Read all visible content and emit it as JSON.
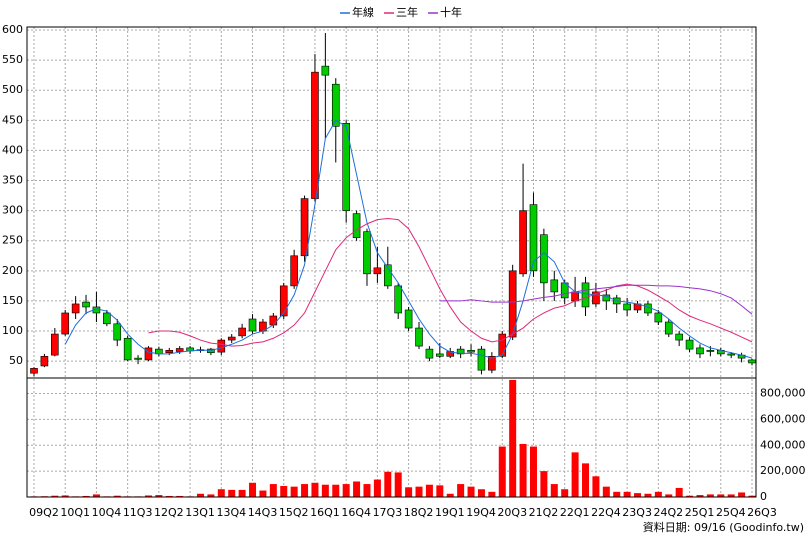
{
  "chart_data": [
    {
      "type": "candlestick",
      "categories": [
        "09Q2",
        null,
        null,
        "10Q1",
        null,
        null,
        "10Q4",
        null,
        null,
        "11Q3",
        null,
        null,
        "12Q2",
        null,
        null,
        "13Q1",
        null,
        null,
        "13Q4",
        null,
        null,
        "14Q3",
        null,
        null,
        "15Q2",
        null,
        null,
        "16Q1",
        null,
        null,
        "16Q4",
        null,
        null,
        "17Q3",
        null,
        null,
        "18Q2",
        null,
        null,
        "19Q1",
        null,
        null,
        "19Q4",
        null,
        null,
        "20Q3",
        null,
        null,
        "21Q2",
        null,
        null,
        "22Q1",
        null,
        null,
        "22Q4",
        null,
        null,
        "23Q3",
        null,
        null,
        "24Q2",
        null,
        null,
        "25Q1",
        null,
        null,
        "25Q4",
        null,
        null,
        "26Q3"
      ],
      "open": [
        30,
        42,
        60,
        95,
        130,
        148,
        140,
        130,
        112,
        88,
        55,
        52,
        70,
        64,
        66,
        72,
        68,
        70,
        65,
        85,
        92,
        120,
        100,
        110,
        125,
        175,
        225,
        320,
        540,
        510,
        445,
        295,
        265,
        195,
        210,
        175,
        135,
        105,
        70,
        62,
        58,
        70,
        68,
        70,
        35,
        58,
        90,
        195,
        310,
        260,
        185,
        180,
        150,
        180,
        145,
        160,
        155,
        145,
        135,
        145,
        130,
        115,
        95,
        85,
        72,
        68,
        68,
        62,
        60,
        52
      ],
      "high": [
        40,
        62,
        105,
        135,
        158,
        160,
        165,
        135,
        120,
        92,
        60,
        75,
        74,
        72,
        75,
        75,
        74,
        72,
        88,
        95,
        112,
        128,
        120,
        130,
        180,
        235,
        325,
        560,
        595,
        520,
        450,
        300,
        270,
        240,
        240,
        180,
        140,
        115,
        75,
        80,
        72,
        75,
        78,
        75,
        65,
        100,
        210,
        378,
        330,
        270,
        200,
        185,
        190,
        190,
        180,
        170,
        160,
        155,
        150,
        150,
        135,
        120,
        100,
        90,
        78,
        75,
        72,
        65,
        64,
        54
      ],
      "low": [
        25,
        40,
        58,
        92,
        120,
        128,
        115,
        108,
        75,
        50,
        45,
        50,
        58,
        60,
        62,
        62,
        64,
        60,
        60,
        80,
        88,
        95,
        95,
        105,
        120,
        170,
        215,
        315,
        420,
        380,
        280,
        250,
        175,
        180,
        170,
        120,
        100,
        70,
        50,
        55,
        55,
        55,
        58,
        28,
        30,
        55,
        85,
        190,
        190,
        150,
        150,
        145,
        140,
        125,
        140,
        135,
        130,
        125,
        130,
        125,
        110,
        90,
        75,
        65,
        55,
        58,
        58,
        55,
        48,
        43
      ],
      "close": [
        38,
        58,
        95,
        130,
        145,
        140,
        130,
        112,
        85,
        52,
        53,
        72,
        62,
        68,
        71,
        67,
        69,
        64,
        85,
        90,
        105,
        100,
        115,
        125,
        175,
        225,
        320,
        530,
        525,
        440,
        300,
        255,
        195,
        205,
        175,
        130,
        105,
        75,
        55,
        58,
        66,
        62,
        65,
        35,
        58,
        95,
        200,
        300,
        200,
        180,
        165,
        155,
        165,
        140,
        165,
        150,
        145,
        135,
        145,
        130,
        115,
        95,
        85,
        70,
        62,
        66,
        62,
        60,
        55,
        47
      ],
      "up_color": "#ff0000",
      "down_color": "#00cc00",
      "series": [
        {
          "name": "年線",
          "color": "#1e6fd9",
          "values": [
            null,
            null,
            null,
            78,
            110,
            130,
            137,
            133,
            118,
            95,
            78,
            65,
            62,
            62,
            65,
            67,
            68,
            68,
            72,
            78,
            85,
            95,
            100,
            110,
            130,
            160,
            210,
            310,
            420,
            450,
            440,
            360,
            280,
            230,
            205,
            180,
            150,
            120,
            95,
            75,
            65,
            63,
            63,
            60,
            55,
            60,
            95,
            150,
            215,
            230,
            215,
            180,
            165,
            162,
            160,
            158,
            150,
            148,
            145,
            140,
            133,
            120,
            105,
            92,
            80,
            72,
            68,
            64,
            60,
            55
          ]
        },
        {
          "name": "三年",
          "color": "#e0287a",
          "values": [
            null,
            null,
            null,
            null,
            null,
            null,
            null,
            null,
            null,
            null,
            null,
            97,
            100,
            100,
            98,
            92,
            85,
            80,
            78,
            75,
            76,
            80,
            82,
            88,
            97,
            110,
            130,
            165,
            200,
            235,
            255,
            268,
            278,
            285,
            287,
            285,
            270,
            240,
            205,
            170,
            140,
            115,
            100,
            88,
            82,
            85,
            95,
            105,
            120,
            130,
            138,
            142,
            150,
            155,
            162,
            168,
            175,
            178,
            175,
            168,
            158,
            148,
            135,
            125,
            118,
            112,
            105,
            98,
            90,
            82
          ]
        },
        {
          "name": "十年",
          "color": "#9933cc",
          "values": [
            null,
            null,
            null,
            null,
            null,
            null,
            null,
            null,
            null,
            null,
            null,
            null,
            null,
            null,
            null,
            null,
            null,
            null,
            null,
            null,
            null,
            null,
            null,
            null,
            null,
            null,
            null,
            null,
            null,
            null,
            null,
            null,
            null,
            null,
            null,
            null,
            null,
            null,
            null,
            150,
            150,
            150,
            152,
            150,
            148,
            148,
            148,
            150,
            153,
            156,
            158,
            162,
            165,
            168,
            170,
            172,
            174,
            176,
            176,
            176,
            175,
            175,
            174,
            172,
            170,
            167,
            162,
            155,
            142,
            128
          ]
        }
      ],
      "ylim": [
        22,
        605
      ],
      "yticks": [
        50,
        100,
        150,
        200,
        250,
        300,
        350,
        400,
        450,
        500,
        550,
        600
      ],
      "grid": true
    },
    {
      "type": "bar",
      "color": "#ff0000",
      "values": [
        5000,
        6000,
        10000,
        12000,
        5000,
        8000,
        20000,
        5000,
        10000,
        5000,
        5000,
        12000,
        15000,
        8000,
        8000,
        5000,
        25000,
        20000,
        60000,
        55000,
        55000,
        110000,
        50000,
        100000,
        85000,
        80000,
        100000,
        110000,
        95000,
        95000,
        100000,
        120000,
        100000,
        135000,
        195000,
        190000,
        75000,
        80000,
        95000,
        90000,
        25000,
        100000,
        80000,
        60000,
        40000,
        390000,
        905000,
        410000,
        390000,
        200000,
        100000,
        60000,
        345000,
        260000,
        160000,
        80000,
        40000,
        40000,
        30000,
        25000,
        40000,
        20000,
        70000,
        10000,
        15000,
        20000,
        20000,
        20000,
        35000,
        10000
      ],
      "ylim": [
        0,
        920000
      ],
      "yticks": [
        0,
        {
          "value": 200000,
          "label": "200,000"
        },
        {
          "value": 400000,
          "label": "400,000"
        },
        {
          "value": 600000,
          "label": "600,000"
        },
        {
          "value": 800000,
          "label": "800,000"
        }
      ],
      "grid": true
    }
  ],
  "footer": "資料日期: 09/16 (Goodinfo.tw)"
}
